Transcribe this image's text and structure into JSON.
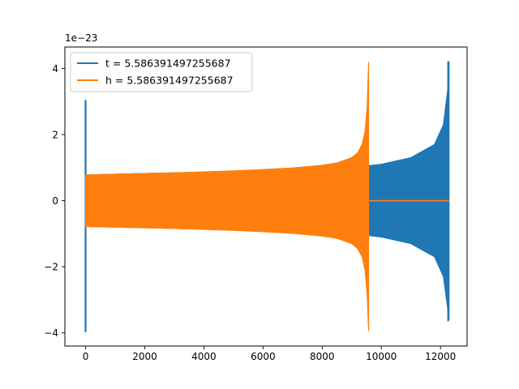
{
  "chart_data": {
    "type": "line",
    "title": "",
    "xlabel": "",
    "ylabel": "",
    "y_scale_label": "1e−23",
    "xlim": [
      -700,
      12900
    ],
    "ylim": [
      -4.4,
      4.65
    ],
    "x_ticks": [
      {
        "value": 0,
        "label": "0"
      },
      {
        "value": 2000,
        "label": "2000"
      },
      {
        "value": 4000,
        "label": "4000"
      },
      {
        "value": 6000,
        "label": "6000"
      },
      {
        "value": 8000,
        "label": "8000"
      },
      {
        "value": 10000,
        "label": "10000"
      },
      {
        "value": 12000,
        "label": "12000"
      }
    ],
    "y_ticks": [
      {
        "value": -4,
        "label": "−4"
      },
      {
        "value": -2,
        "label": "−2"
      },
      {
        "value": 0,
        "label": "0"
      },
      {
        "value": 2,
        "label": "2"
      },
      {
        "value": 4,
        "label": "4"
      }
    ],
    "grid": false,
    "legend_position": "upper-left",
    "series": [
      {
        "name": "t = 5.586391497255687",
        "color": "#1f77b4",
        "envelope": {
          "x": [
            0,
            2000,
            4000,
            6000,
            8000,
            9000,
            9540,
            9600,
            10000,
            11000,
            11800,
            12100,
            12250,
            12290
          ],
          "upper": [
            0.78,
            0.82,
            0.86,
            0.91,
            0.97,
            1.02,
            1.04,
            1.06,
            1.1,
            1.3,
            1.7,
            2.3,
            3.4,
            4.2
          ],
          "lower": [
            -0.78,
            -0.82,
            -0.86,
            -0.91,
            -0.97,
            -1.02,
            -1.04,
            -1.06,
            -1.1,
            -1.3,
            -1.7,
            -2.3,
            -3.3,
            -3.6
          ]
        },
        "spikes": [
          {
            "x": 0,
            "max": 3.05,
            "min": -3.98
          },
          {
            "x": 12260,
            "max": 4.22,
            "min": -3.65
          }
        ]
      },
      {
        "name": "h = 5.586391497255687",
        "color": "#ff7f0e",
        "envelope": {
          "x": [
            0,
            1000,
            2000,
            3000,
            4000,
            5000,
            6000,
            7000,
            8000,
            8500,
            9000,
            9200,
            9350,
            9450,
            9520,
            9570
          ],
          "upper": [
            0.78,
            0.8,
            0.82,
            0.84,
            0.87,
            0.9,
            0.94,
            0.99,
            1.07,
            1.14,
            1.3,
            1.45,
            1.7,
            2.1,
            2.8,
            4.2
          ],
          "lower": [
            -0.78,
            -0.8,
            -0.82,
            -0.84,
            -0.87,
            -0.9,
            -0.94,
            -0.99,
            -1.07,
            -1.14,
            -1.3,
            -1.45,
            -1.7,
            -2.1,
            -2.8,
            -3.95
          ]
        },
        "flat": {
          "x_start": 9570,
          "x_end": 12290,
          "y": 0
        }
      }
    ]
  }
}
